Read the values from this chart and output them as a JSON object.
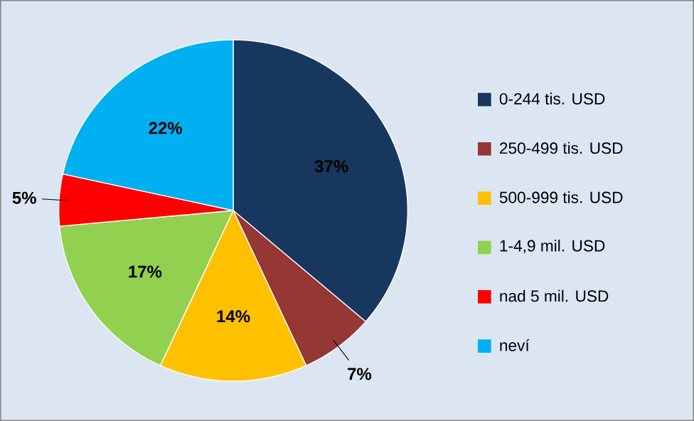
{
  "chart_data": {
    "type": "pie",
    "categories": [
      "0-244 tis. USD",
      "250-499 tis. USD",
      "500-999 tis. USD",
      "1-4,9 mil. USD",
      "nad 5 mil. USD",
      "neví"
    ],
    "values": [
      37,
      7,
      14,
      17,
      5,
      22
    ],
    "value_labels": [
      "37%",
      "7%",
      "14%",
      "17%",
      "5%",
      "22%"
    ],
    "colors": [
      "#17375e",
      "#953735",
      "#ffc000",
      "#92d050",
      "#ff0000",
      "#00b0f0"
    ],
    "legend": "right"
  }
}
